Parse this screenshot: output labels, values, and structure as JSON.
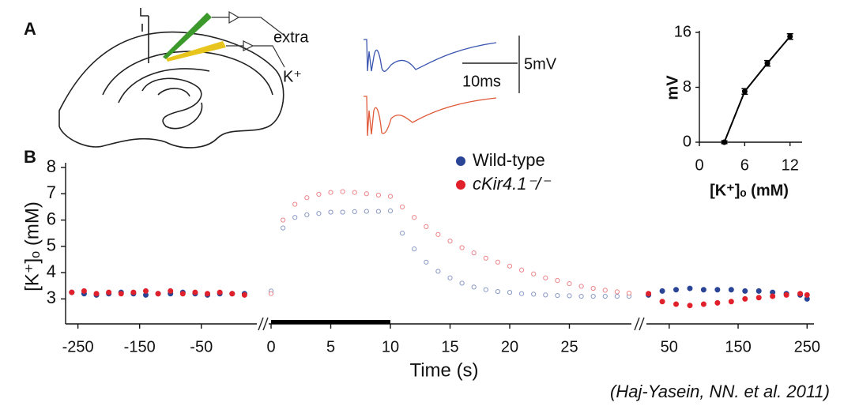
{
  "panel_a": {
    "label": "A",
    "extra": "extra",
    "k": "K⁺",
    "scale_v": "5mV",
    "scale_t": "10ms"
  },
  "panel_b": {
    "label": "B"
  },
  "citation": "(Haj-Yasein, NN. et al. 2011)",
  "chart_data": [
    {
      "type": "line",
      "xlabel": "[K⁺]ₒ (mM)",
      "ylabel": "mV",
      "x": [
        3.3,
        6,
        9,
        12
      ],
      "values": [
        0,
        7.4,
        11.5,
        15.4
      ],
      "errors": [
        0.2,
        0.4,
        0.4,
        0.4
      ],
      "color": "#000000",
      "xlim": [
        0,
        13.6
      ],
      "xticks": [
        0,
        6,
        12
      ],
      "ylim": [
        0,
        16
      ],
      "yticks": [
        0,
        8,
        16
      ]
    },
    {
      "type": "scatter",
      "xlabel": "Time (s)",
      "ylabel": "[K⁺]ₒ (mM)",
      "ylim": [
        2.05,
        8
      ],
      "yticks": [
        3,
        4,
        5,
        6,
        7,
        8
      ],
      "series": [
        {
          "name": "Wild-type",
          "color": "#2a4596"
        },
        {
          "name": "cKir4.1⁻/⁻",
          "color": "#e0202a"
        }
      ],
      "segments": [
        {
          "xlim": [
            -270,
            40
          ],
          "xticks": [
            -250,
            -150,
            -50
          ],
          "markers": "filled",
          "x": [
            -260,
            -240,
            -220,
            -200,
            -180,
            -160,
            -140,
            -120,
            -100,
            -80,
            -60,
            -40,
            -20,
            0,
            20
          ],
          "series": [
            {
              "values": [
                3.25,
                3.2,
                3.15,
                3.2,
                3.25,
                3.2,
                3.15,
                3.2,
                3.2,
                3.25,
                3.2,
                3.15,
                3.2,
                3.2,
                3.2
              ]
            },
            {
              "values": [
                3.25,
                3.3,
                3.2,
                3.25,
                3.2,
                3.25,
                3.3,
                3.2,
                3.3,
                3.2,
                3.25,
                3.2,
                3.25,
                3.2,
                3.15
              ]
            }
          ]
        },
        {
          "xlim": [
            -0.2,
            30.2
          ],
          "xticks": [
            0,
            5,
            10,
            15,
            20,
            25
          ],
          "markers": "open",
          "stimulus": [
            0,
            10
          ],
          "x": [
            0,
            1,
            2,
            3,
            4,
            5,
            6,
            7,
            8,
            9,
            10,
            11,
            12,
            13,
            14,
            15,
            16,
            17,
            18,
            19,
            20,
            21,
            22,
            23,
            24,
            25,
            26,
            27,
            28,
            29,
            30
          ],
          "series": [
            {
              "values": [
                3.3,
                5.7,
                6.1,
                6.2,
                6.25,
                6.3,
                6.3,
                6.32,
                6.33,
                6.33,
                6.35,
                5.5,
                4.9,
                4.4,
                4.05,
                3.8,
                3.6,
                3.45,
                3.35,
                3.28,
                3.25,
                3.2,
                3.18,
                3.15,
                3.13,
                3.12,
                3.1,
                3.1,
                3.1,
                3.1,
                3.1
              ]
            },
            {
              "values": [
                3.2,
                6.0,
                6.6,
                6.85,
                6.98,
                7.05,
                7.08,
                7.05,
                7.0,
                6.95,
                6.9,
                6.5,
                6.1,
                5.75,
                5.45,
                5.2,
                4.95,
                4.75,
                4.55,
                4.4,
                4.25,
                4.1,
                3.95,
                3.8,
                3.7,
                3.58,
                3.48,
                3.4,
                3.33,
                3.27,
                3.22
              ]
            }
          ]
        },
        {
          "xlim": [
            17,
            260
          ],
          "xticks": [
            50,
            150,
            250
          ],
          "markers": "filled",
          "x": [
            20,
            40,
            60,
            80,
            100,
            120,
            140,
            160,
            180,
            200,
            220,
            240,
            250
          ],
          "series": [
            {
              "values": [
                3.15,
                3.3,
                3.35,
                3.4,
                3.35,
                3.35,
                3.35,
                3.3,
                3.3,
                3.25,
                3.2,
                3.15,
                3.0
              ]
            },
            {
              "values": [
                3.2,
                2.9,
                2.8,
                2.75,
                2.8,
                2.85,
                2.9,
                3.0,
                3.05,
                3.1,
                3.15,
                3.2,
                3.15
              ]
            }
          ]
        }
      ]
    }
  ]
}
